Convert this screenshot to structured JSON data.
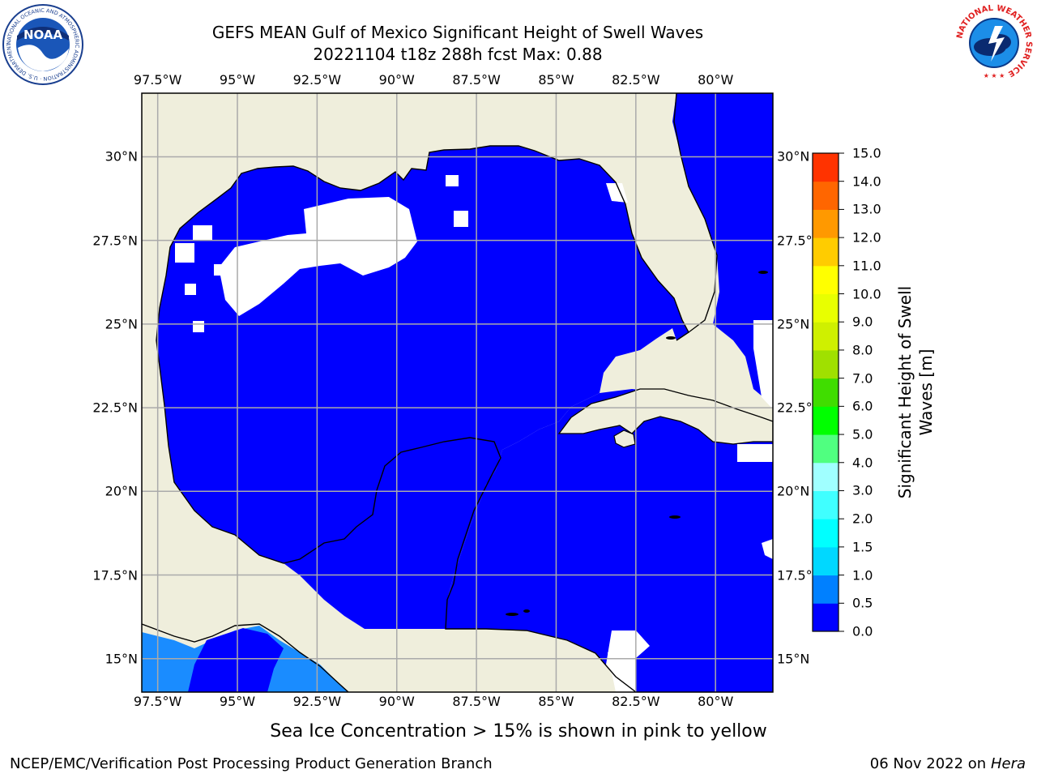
{
  "title": {
    "line1": "GEFS MEAN Gulf of Mexico Significant Height of Swell Waves",
    "line2": "20221104 t18z 288h fcst   Max: 0.88"
  },
  "axes": {
    "lon_ticks": [
      "97.5°W",
      "95°W",
      "92.5°W",
      "90°W",
      "87.5°W",
      "85°W",
      "82.5°W",
      "80°W"
    ],
    "lon_values": [
      -97.5,
      -95,
      -92.5,
      -90,
      -87.5,
      -85,
      -82.5,
      -80
    ],
    "lat_ticks": [
      "30°N",
      "27.5°N",
      "25°N",
      "22.5°N",
      "20°N",
      "17.5°N",
      "15°N"
    ],
    "lat_values": [
      30,
      27.5,
      25,
      22.5,
      20,
      17.5,
      15
    ],
    "lon_range": [
      -98,
      -78.2
    ],
    "lat_range": [
      14,
      31.9
    ],
    "grid": true
  },
  "colorbar": {
    "label_line1": "Significant Height of Swell",
    "label_line2": "Waves [m]",
    "ticks": [
      "0.0",
      "0.5",
      "1.0",
      "1.5",
      "2.0",
      "3.0",
      "4.0",
      "5.0",
      "6.0",
      "7.0",
      "8.0",
      "9.0",
      "10.0",
      "11.0",
      "12.0",
      "13.0",
      "14.0",
      "15.0"
    ],
    "colors": [
      "#0000ff",
      "#0080ff",
      "#00d8ff",
      "#00ffff",
      "#40ffff",
      "#a0ffff",
      "#50ff80",
      "#00ff00",
      "#40dd00",
      "#a0e000",
      "#cff000",
      "#e8ff00",
      "#ffff00",
      "#ffcc00",
      "#ff9900",
      "#ff6600",
      "#ff3300",
      "#ff0000"
    ]
  },
  "map": {
    "land_color": "#efeedc",
    "ocean_color": "#0000ff",
    "light_swell_color": "#1a8cff",
    "no_data_color": "#ffffff"
  },
  "note": "Sea Ice Concentration > 15% is shown in pink to yellow",
  "footer": {
    "left": "NCEP/EMC/Verification Post Processing Product Generation Branch",
    "right_date": "06 Nov 2022 on",
    "right_host": "Hera"
  },
  "logos": {
    "noaa_text": "NOAA",
    "noaa_ring": "NATIONAL OCEANIC AND ATMOSPHERIC ADMINISTRATION · U.S. DEPARTMENT OF COMMERCE",
    "nws_ring": "NATIONAL WEATHER SERVICE"
  }
}
